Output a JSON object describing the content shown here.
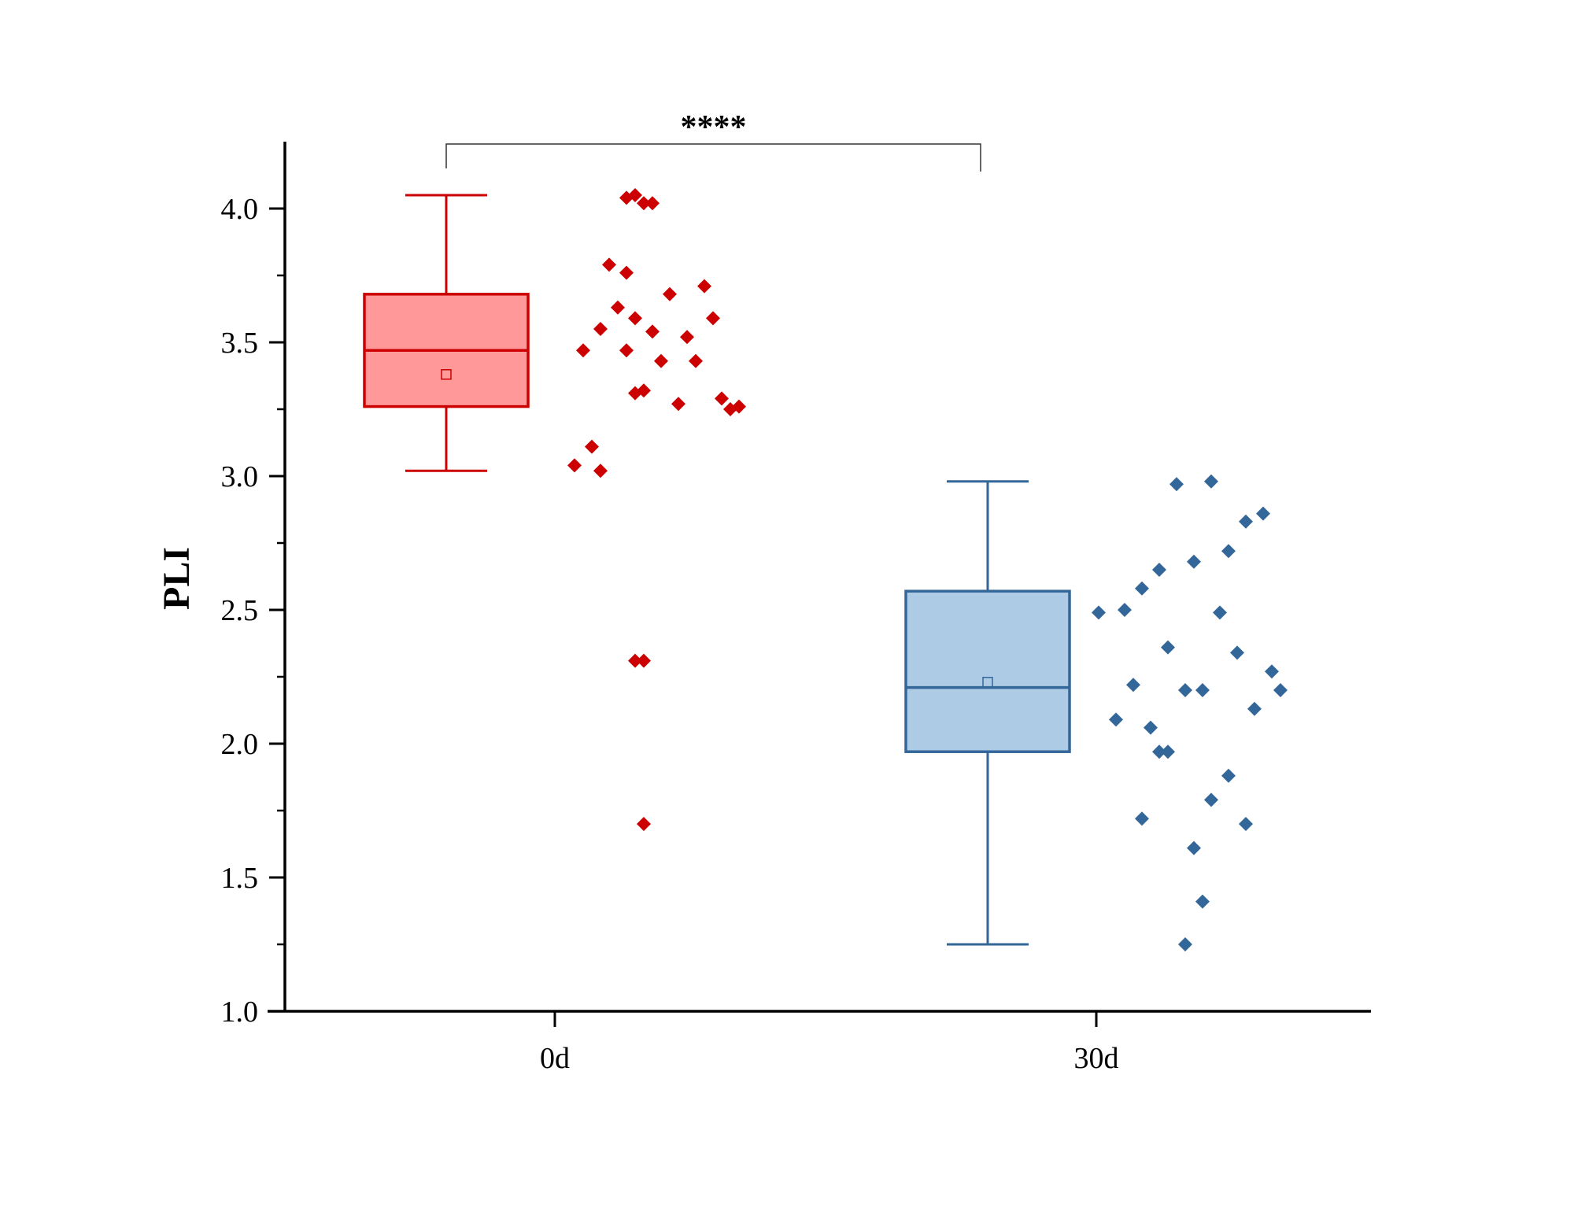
{
  "chart_data": {
    "type": "box",
    "categories": [
      "0d",
      "30d"
    ],
    "ylabel": "PLI",
    "xlabel": "",
    "ylim": [
      1.0,
      4.25
    ],
    "yticks": [
      1.0,
      1.5,
      2.0,
      2.5,
      3.0,
      3.5,
      4.0
    ],
    "ytick_labels": [
      "1.0",
      "1.5",
      "2.0",
      "2.5",
      "3.0",
      "3.5",
      "4.0"
    ],
    "significance": {
      "label": "****",
      "between": [
        "0d",
        "30d"
      ]
    },
    "series": [
      {
        "category": "0d",
        "color": "#cc0000",
        "box_fill": "#ff9999",
        "whisker_low": 3.02,
        "q1": 3.26,
        "median": 3.47,
        "q3": 3.68,
        "whisker_high": 4.05,
        "mean": 3.38,
        "points": [
          [
            0.05,
            3.04
          ],
          [
            0.07,
            3.11
          ],
          [
            0.08,
            3.02
          ],
          [
            0.06,
            3.47
          ],
          [
            0.09,
            3.79
          ],
          [
            0.1,
            3.63
          ],
          [
            0.08,
            3.55
          ],
          [
            0.11,
            3.47
          ],
          [
            0.12,
            3.31
          ],
          [
            0.13,
            3.32
          ],
          [
            0.12,
            3.59
          ],
          [
            0.14,
            3.54
          ],
          [
            0.11,
            3.76
          ],
          [
            0.15,
            3.43
          ],
          [
            0.17,
            3.27
          ],
          [
            0.16,
            3.68
          ],
          [
            0.18,
            3.52
          ],
          [
            0.19,
            3.43
          ],
          [
            0.2,
            3.71
          ],
          [
            0.21,
            3.59
          ],
          [
            0.22,
            3.29
          ],
          [
            0.23,
            3.25
          ],
          [
            0.24,
            3.26
          ],
          [
            0.11,
            4.04
          ],
          [
            0.12,
            4.05
          ],
          [
            0.13,
            4.02
          ],
          [
            0.14,
            4.02
          ],
          [
            0.12,
            2.31
          ],
          [
            0.13,
            2.31
          ],
          [
            0.13,
            1.7
          ]
        ]
      },
      {
        "category": "30d",
        "color": "#336699",
        "box_fill": "#aecbe6",
        "whisker_low": 1.25,
        "q1": 1.97,
        "median": 2.21,
        "q3": 2.57,
        "whisker_high": 2.98,
        "mean": 2.23,
        "points": [
          [
            0.03,
            2.49
          ],
          [
            0.05,
            2.09
          ],
          [
            0.06,
            2.5
          ],
          [
            0.07,
            2.22
          ],
          [
            0.08,
            2.58
          ],
          [
            0.08,
            1.72
          ],
          [
            0.09,
            2.06
          ],
          [
            0.1,
            2.65
          ],
          [
            0.1,
            1.97
          ],
          [
            0.11,
            2.36
          ],
          [
            0.11,
            1.97
          ],
          [
            0.12,
            2.97
          ],
          [
            0.13,
            2.2
          ],
          [
            0.14,
            2.68
          ],
          [
            0.14,
            1.61
          ],
          [
            0.15,
            2.2
          ],
          [
            0.15,
            1.41
          ],
          [
            0.16,
            2.98
          ],
          [
            0.16,
            1.79
          ],
          [
            0.17,
            2.49
          ],
          [
            0.18,
            1.88
          ],
          [
            0.18,
            2.72
          ],
          [
            0.19,
            2.34
          ],
          [
            0.2,
            2.83
          ],
          [
            0.2,
            1.7
          ],
          [
            0.21,
            2.13
          ],
          [
            0.22,
            2.86
          ],
          [
            0.23,
            2.27
          ],
          [
            0.24,
            2.2
          ],
          [
            0.13,
            1.25
          ]
        ]
      }
    ]
  }
}
